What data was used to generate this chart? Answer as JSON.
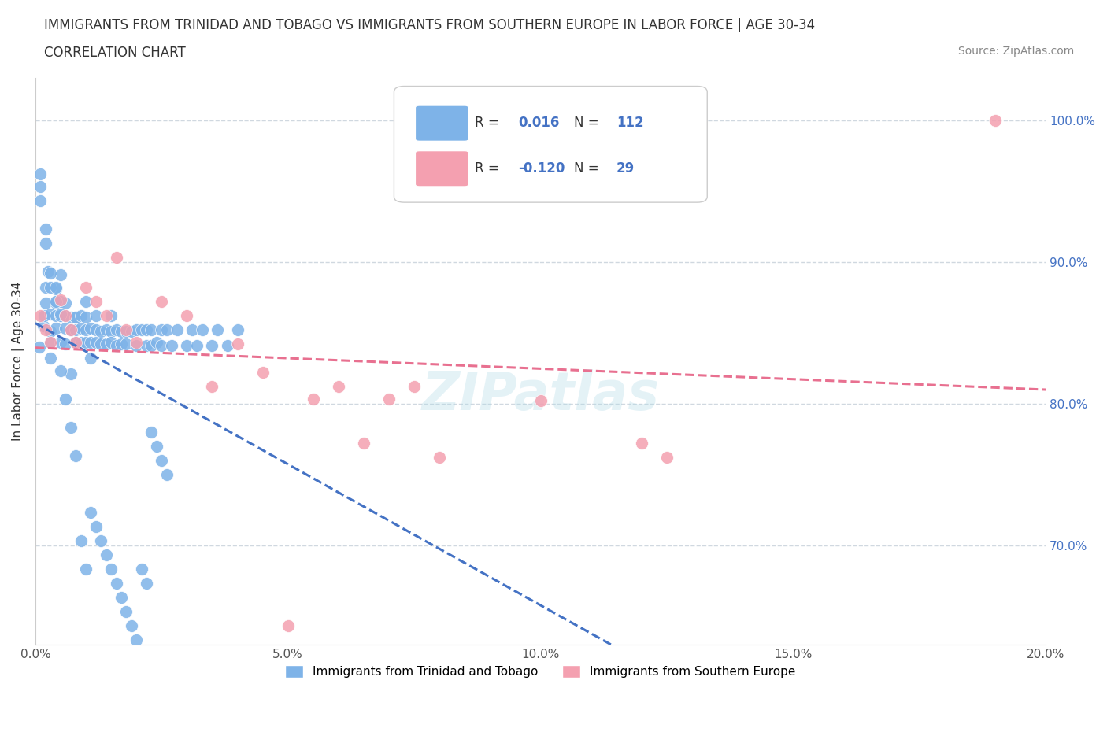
{
  "title_line1": "IMMIGRANTS FROM TRINIDAD AND TOBAGO VS IMMIGRANTS FROM SOUTHERN EUROPE IN LABOR FORCE | AGE 30-34",
  "title_line2": "CORRELATION CHART",
  "source": "Source: ZipAtlas.com",
  "ylabel": "In Labor Force | Age 30-34",
  "xlim": [
    0.0,
    0.2
  ],
  "ylim": [
    0.63,
    1.03
  ],
  "right_yticks": [
    0.7,
    0.8,
    0.9,
    1.0
  ],
  "right_yticklabels": [
    "70.0%",
    "80.0%",
    "90.0%",
    "100.0%"
  ],
  "xticks": [
    0.0,
    0.05,
    0.1,
    0.15,
    0.2
  ],
  "xticklabels": [
    "0.0%",
    "5.0%",
    "10.0%",
    "15.0%",
    "20.0%"
  ],
  "blue_color": "#7EB3E8",
  "pink_color": "#F4A0B0",
  "blue_line_color": "#4472C4",
  "pink_line_color": "#E87090",
  "grid_color": "#D0D8E0",
  "R_blue": 0.016,
  "N_blue": 112,
  "R_pink": -0.12,
  "N_pink": 29,
  "legend_label_blue": "Immigrants from Trinidad and Tobago",
  "legend_label_pink": "Immigrants from Southern Europe",
  "watermark": "ZIPatlas",
  "blue_x": [
    0.0008,
    0.0015,
    0.0018,
    0.002,
    0.002,
    0.0025,
    0.003,
    0.003,
    0.003,
    0.003,
    0.004,
    0.004,
    0.004,
    0.004,
    0.004,
    0.005,
    0.005,
    0.005,
    0.005,
    0.005,
    0.006,
    0.006,
    0.006,
    0.006,
    0.007,
    0.007,
    0.007,
    0.007,
    0.008,
    0.008,
    0.008,
    0.008,
    0.009,
    0.009,
    0.009,
    0.01,
    0.01,
    0.01,
    0.01,
    0.011,
    0.011,
    0.011,
    0.012,
    0.012,
    0.012,
    0.013,
    0.013,
    0.014,
    0.014,
    0.015,
    0.015,
    0.015,
    0.016,
    0.016,
    0.017,
    0.017,
    0.018,
    0.018,
    0.019,
    0.02,
    0.02,
    0.021,
    0.022,
    0.022,
    0.023,
    0.023,
    0.024,
    0.025,
    0.025,
    0.026,
    0.027,
    0.028,
    0.03,
    0.031,
    0.032,
    0.033,
    0.035,
    0.036,
    0.038,
    0.04,
    0.001,
    0.001,
    0.001,
    0.002,
    0.002,
    0.003,
    0.003,
    0.004,
    0.004,
    0.005,
    0.005,
    0.006,
    0.007,
    0.008,
    0.009,
    0.01,
    0.011,
    0.012,
    0.013,
    0.014,
    0.015,
    0.016,
    0.017,
    0.018,
    0.019,
    0.02,
    0.021,
    0.022,
    0.023,
    0.024,
    0.025,
    0.026
  ],
  "blue_y": [
    0.84,
    0.855,
    0.862,
    0.871,
    0.882,
    0.893,
    0.832,
    0.843,
    0.851,
    0.863,
    0.872,
    0.881,
    0.871,
    0.862,
    0.853,
    0.862,
    0.843,
    0.872,
    0.891,
    0.862,
    0.853,
    0.842,
    0.871,
    0.862,
    0.861,
    0.852,
    0.821,
    0.852,
    0.861,
    0.843,
    0.852,
    0.861,
    0.853,
    0.862,
    0.843,
    0.852,
    0.861,
    0.843,
    0.872,
    0.853,
    0.843,
    0.832,
    0.852,
    0.862,
    0.843,
    0.851,
    0.842,
    0.852,
    0.842,
    0.851,
    0.862,
    0.843,
    0.852,
    0.841,
    0.851,
    0.842,
    0.851,
    0.842,
    0.851,
    0.852,
    0.841,
    0.852,
    0.841,
    0.852,
    0.841,
    0.852,
    0.843,
    0.852,
    0.841,
    0.852,
    0.841,
    0.852,
    0.841,
    0.852,
    0.841,
    0.852,
    0.841,
    0.852,
    0.841,
    0.852,
    0.962,
    0.953,
    0.943,
    0.913,
    0.923,
    0.892,
    0.882,
    0.872,
    0.882,
    0.863,
    0.823,
    0.803,
    0.783,
    0.763,
    0.703,
    0.683,
    0.723,
    0.713,
    0.703,
    0.693,
    0.683,
    0.673,
    0.663,
    0.653,
    0.643,
    0.633,
    0.683,
    0.673,
    0.78,
    0.77,
    0.76,
    0.75
  ],
  "pink_x": [
    0.001,
    0.002,
    0.003,
    0.005,
    0.006,
    0.007,
    0.008,
    0.01,
    0.012,
    0.014,
    0.016,
    0.018,
    0.02,
    0.025,
    0.03,
    0.035,
    0.04,
    0.045,
    0.05,
    0.055,
    0.06,
    0.065,
    0.07,
    0.075,
    0.08,
    0.1,
    0.12,
    0.125,
    0.19
  ],
  "pink_y": [
    0.862,
    0.852,
    0.843,
    0.873,
    0.862,
    0.852,
    0.843,
    0.882,
    0.872,
    0.862,
    0.903,
    0.852,
    0.843,
    0.872,
    0.862,
    0.812,
    0.842,
    0.822,
    0.643,
    0.803,
    0.812,
    0.772,
    0.803,
    0.812,
    0.762,
    0.802,
    0.772,
    0.762,
    1.0
  ]
}
